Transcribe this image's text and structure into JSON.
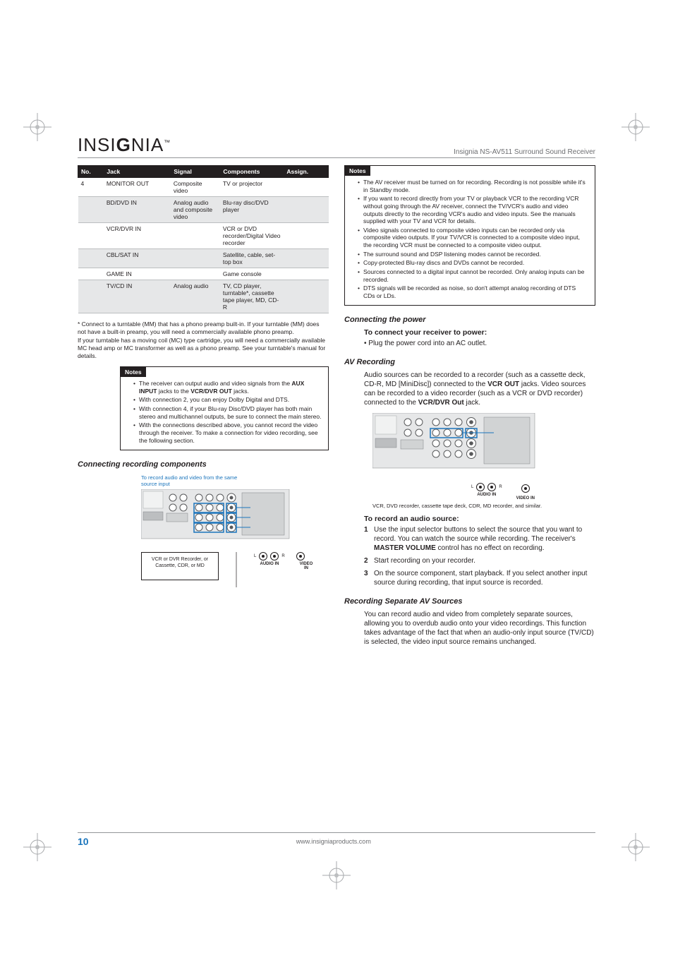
{
  "doc_title": "Insignia NS-AV511 Surround Sound Receiver",
  "logo": {
    "pre": "INSI",
    "accent": "G",
    "post": "NIA",
    "tm": "™"
  },
  "table": {
    "headers": [
      "No.",
      "Jack",
      "Signal",
      "Components",
      "Assign."
    ],
    "rows": [
      {
        "no": "4",
        "jack": "MONITOR OUT",
        "signal": "Composite video",
        "components": "TV or projector",
        "assign": "",
        "shade": false
      },
      {
        "no": "",
        "jack": "BD/DVD IN",
        "signal": "Analog audio and composite video",
        "components": "Blu-ray disc/DVD player",
        "assign": "",
        "shade": true
      },
      {
        "no": "",
        "jack": "VCR/DVR IN",
        "signal": "",
        "components": "VCR or DVD recorder/Digital Video recorder",
        "assign": "",
        "shade": false
      },
      {
        "no": "",
        "jack": "CBL/SAT IN",
        "signal": "",
        "components": "Satellite, cable, set-top box",
        "assign": "",
        "shade": true
      },
      {
        "no": "",
        "jack": "GAME IN",
        "signal": "",
        "components": "Game console",
        "assign": "",
        "shade": false
      },
      {
        "no": "",
        "jack": "TV/CD IN",
        "signal": "Analog audio",
        "components": "TV, CD player, turntable*, cassette tape player, MD, CD-R",
        "assign": "",
        "shade": true
      }
    ]
  },
  "footnote1": "* Connect to a turntable (MM) that has a phono preamp built-in. If your turntable (MM) does not have a built-in preamp, you will need a commercially available phono preamp.",
  "footnote2": "If your turntable has a moving coil (MC) type cartridge, you will need a commercially available MC head amp or MC transformer as well as a phono preamp. See your turntable's manual for details.",
  "notes_left_title": "Notes",
  "notes_left": [
    "The receiver can output audio and video signals from the <b>AUX INPUT</b> jacks to the <b>VCR/DVR OUT</b> jacks.",
    "With connection 2, you can enjoy Dolby Digital and DTS.",
    "With connection 4, if your Blu-ray Disc/DVD player has both main stereo and multichannel outputs, be sure to connect the main stereo.",
    "With the connections described above, you cannot record the video through the receiver. To make a connection for video recording, see the following section."
  ],
  "section_recording": "Connecting recording components",
  "diagram1": {
    "caption": "To record audio and video from the same source input",
    "box_label": "VCR or DVR Recorder, or Cassette, CDR, or MD",
    "audio_in": "AUDIO IN",
    "video_in": "VIDEO IN",
    "L": "L",
    "R": "R"
  },
  "notes_right_title": "Notes",
  "notes_right": [
    "The AV receiver must be turned on for recording. Recording is not possible while it's in Standby mode.",
    "If you want to record directly from your TV or playback VCR to the recording VCR without going through the AV receiver, connect the TV/VCR's audio and video outputs directly to the recording VCR's audio and video inputs. See the manuals supplied with your TV and VCR for details.",
    "Video signals connected to composite video inputs can be recorded only via composite video outputs. If your TV/VCR is connected to a composite video input, the recording VCR must be connected to a composite video output.",
    "The surround sound and DSP listening modes cannot be recorded.",
    "Copy-protected Blu-ray discs and DVDs cannot be recorded.",
    "Sources connected to a digital input cannot be recorded. Only analog inputs can be recorded.",
    "DTS signals will be recorded as noise, so don't attempt analog recording of DTS CDs or LDs."
  ],
  "section_power": "Connecting the power",
  "power_sub": "To connect your receiver to power:",
  "power_step": "Plug the power cord into an AC outlet.",
  "section_av": "AV Recording",
  "av_body": "Audio sources can be recorded to a recorder (such as a cassette deck, CD-R, MD [MiniDisc]) connected to the <b>VCR OUT</b> jacks. Video sources can be recorded to a video recorder (such as a VCR or DVD recorder) connected to the <b>VCR/DVR Out</b> jack.",
  "diagram2": {
    "sublabel": "VCR, DVD recorder, cassette tape deck, CDR, MD recorder, and similar.",
    "audio_in": "AUDIO IN",
    "video_in": "VIDEO IN",
    "L": "L",
    "R": "R"
  },
  "record_sub": "To record an audio source:",
  "record_steps": [
    "Use the input selector buttons to select the source that you want to record. You can watch the source while recording. The receiver's <b>MASTER VOLUME</b> control has no effect on recording.",
    "Start recording on your recorder.",
    "On the source component, start playback. If you select another input source during recording, that input source is recorded."
  ],
  "section_sep": "Recording Separate AV Sources",
  "sep_body": "You can record audio and video from completely separate sources, allowing you to overdub audio onto your video recordings. This function takes advantage of the fact that when an audio-only input source (TV/CD) is selected, the video input source remains unchanged.",
  "page_number": "10",
  "footer_url": "www.insigniaproducts.com"
}
